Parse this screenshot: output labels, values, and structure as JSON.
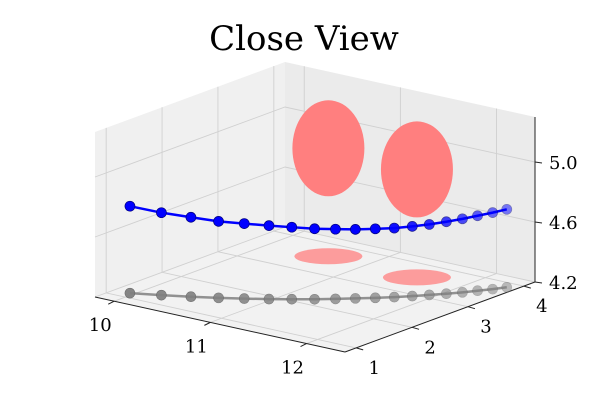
{
  "chart_data": {
    "type": "scatter",
    "title": "Close View",
    "projection": "3d",
    "grid": true,
    "x_axis": {
      "label": "",
      "ticks": [
        10,
        11,
        12
      ],
      "range": [
        9.8,
        12.4
      ]
    },
    "y_axis": {
      "label": "",
      "ticks": [
        1,
        2,
        3,
        4
      ],
      "range": [
        0.8,
        4.2
      ]
    },
    "z_axis": {
      "label": "",
      "ticks": [
        "4.2",
        "4.6",
        "5.0"
      ],
      "range": [
        4.2,
        5.3
      ]
    },
    "series": [
      {
        "style": "line-markers",
        "color": "#0000ff",
        "points": [
          {
            "x": 9.96,
            "y": 1.15,
            "z": 4.78
          },
          {
            "x": 10.2,
            "y": 1.3,
            "z": 4.75
          },
          {
            "x": 10.42,
            "y": 1.45,
            "z": 4.73
          },
          {
            "x": 10.62,
            "y": 1.6,
            "z": 4.71
          },
          {
            "x": 10.8,
            "y": 1.75,
            "z": 4.7
          },
          {
            "x": 10.97,
            "y": 1.9,
            "z": 4.69
          },
          {
            "x": 11.12,
            "y": 2.05,
            "z": 4.68
          },
          {
            "x": 11.27,
            "y": 2.2,
            "z": 4.67
          },
          {
            "x": 11.4,
            "y": 2.35,
            "z": 4.665
          },
          {
            "x": 11.52,
            "y": 2.5,
            "z": 4.66
          },
          {
            "x": 11.64,
            "y": 2.65,
            "z": 4.66
          },
          {
            "x": 11.75,
            "y": 2.8,
            "z": 4.66
          },
          {
            "x": 11.85,
            "y": 2.95,
            "z": 4.665
          },
          {
            "x": 11.94,
            "y": 3.1,
            "z": 4.67
          },
          {
            "x": 12.03,
            "y": 3.25,
            "z": 4.68
          },
          {
            "x": 12.11,
            "y": 3.4,
            "z": 4.69
          },
          {
            "x": 12.18,
            "y": 3.55,
            "z": 4.7
          },
          {
            "x": 12.25,
            "y": 3.7,
            "z": 4.71
          },
          {
            "x": 12.31,
            "y": 3.85,
            "z": 4.72
          }
        ]
      },
      {
        "style": "shadow-line-markers",
        "color": "#808080",
        "projection_plane": "z=4.2",
        "points_from_series": 0
      }
    ],
    "ellipses": [
      {
        "center": {
          "x": 10.6,
          "y": 3.6,
          "z": 4.92
        },
        "color": "#ff7f7f"
      },
      {
        "center": {
          "x": 11.55,
          "y": 3.55,
          "z": 4.92
        },
        "color": "#ff7f7f"
      }
    ],
    "ellipse_shadows": [
      {
        "center": {
          "x": 10.6,
          "y": 3.6,
          "z": 4.2
        },
        "color": "#ff7f7f"
      },
      {
        "center": {
          "x": 11.55,
          "y": 3.55,
          "z": 4.2
        },
        "color": "#ff7f7f"
      }
    ]
  }
}
